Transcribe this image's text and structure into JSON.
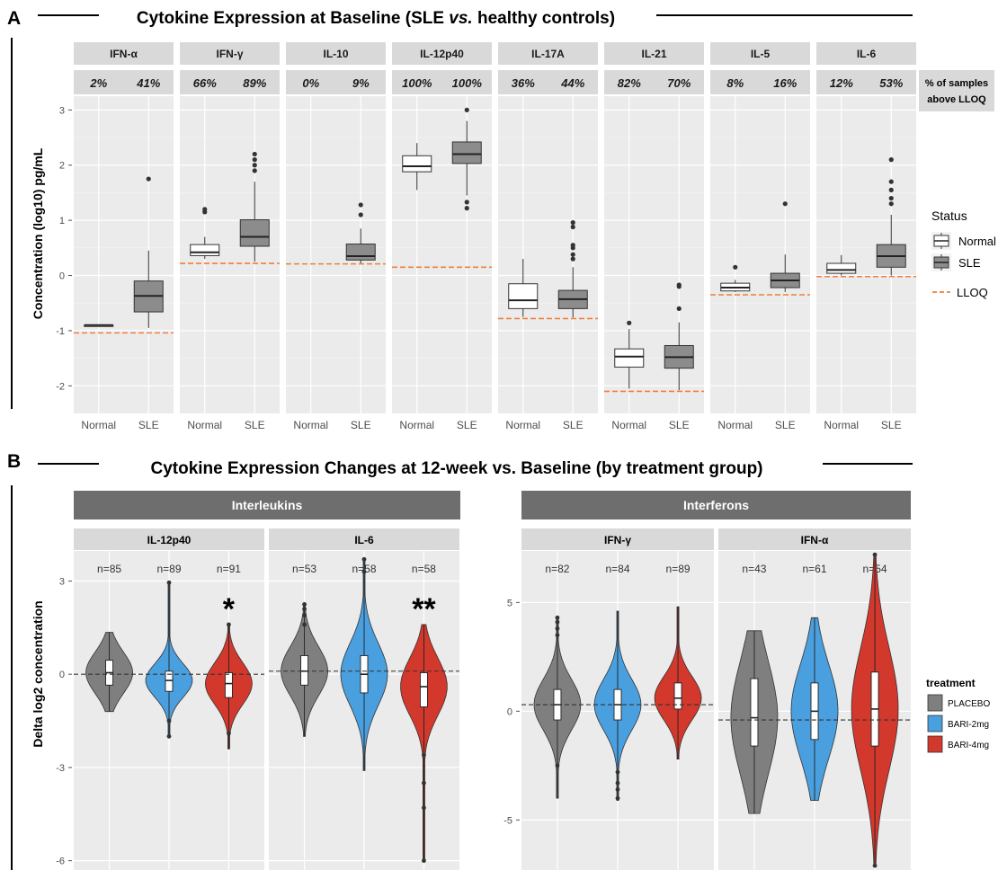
{
  "panel_a": {
    "letter": "A",
    "title_pre": "Cytokine Expression at Baseline (SLE ",
    "title_italic": "vs.",
    "title_post": " healthy controls)",
    "ylabel": "Concentration (log10) pg/mL",
    "right_label_line1": "% of samples",
    "right_label_line2": "above LLOQ",
    "legend_title": "Status",
    "legend_items": [
      "Normal",
      "SLE"
    ],
    "legend_lloq": "LLOQ",
    "colors": {
      "normal": "#ffffff",
      "sle": "#8c8c8c",
      "lloq": "#f07f3c"
    }
  },
  "panel_b": {
    "letter": "B",
    "title": "Cytokine Expression Changes at 12-week vs. Baseline (by treatment group)",
    "ylabel": "Delta log2 concentration",
    "group_left": "Interleukins",
    "group_right": "Interferons",
    "legend_title": "treatment",
    "legend_items": [
      "PLACEBO",
      "BARI-2mg",
      "BARI-4mg"
    ],
    "colors": {
      "placebo": "#7f7f7f",
      "bari2": "#4a9fdf",
      "bari4": "#d2382c"
    }
  },
  "chart_data": [
    {
      "type": "box",
      "panel": "A",
      "title": "Cytokine Expression at Baseline (SLE vs. healthy controls)",
      "ylabel": "Concentration (log10) pg/mL",
      "ylim": [
        -2.5,
        3.25
      ],
      "yticks": [
        -2,
        -1,
        0,
        1,
        2,
        3
      ],
      "categories": [
        "Normal",
        "SLE"
      ],
      "facets": [
        {
          "name": "IFN-α",
          "pct": [
            "2%",
            "41%"
          ],
          "lloq": -1.04,
          "normal": {
            "q1": -0.9,
            "med": -0.9,
            "q3": -0.9,
            "lo": -0.9,
            "hi": -0.9,
            "out": []
          },
          "sle": {
            "q1": -0.66,
            "med": -0.37,
            "q3": -0.1,
            "lo": -0.95,
            "hi": 0.45,
            "out": [
              1.75
            ]
          }
        },
        {
          "name": "IFN-γ",
          "pct": [
            "66%",
            "89%"
          ],
          "lloq": 0.22,
          "normal": {
            "q1": 0.36,
            "med": 0.42,
            "q3": 0.56,
            "lo": 0.3,
            "hi": 0.7,
            "out": [
              1.15,
              1.2
            ]
          },
          "sle": {
            "q1": 0.53,
            "med": 0.7,
            "q3": 1.01,
            "lo": 0.25,
            "hi": 1.7,
            "out": [
              1.9,
              2.0,
              2.1,
              2.2
            ]
          }
        },
        {
          "name": "IL-10",
          "pct": [
            "0%",
            "9%"
          ],
          "lloq": 0.21,
          "normal": null,
          "sle": {
            "q1": 0.28,
            "med": 0.35,
            "q3": 0.57,
            "lo": 0.22,
            "hi": 0.85,
            "out": [
              1.1,
              1.28
            ]
          }
        },
        {
          "name": "IL-12p40",
          "pct": [
            "100%",
            "100%"
          ],
          "lloq": 0.15,
          "normal": {
            "q1": 1.88,
            "med": 1.98,
            "q3": 2.17,
            "lo": 1.55,
            "hi": 2.4,
            "out": []
          },
          "sle": {
            "q1": 2.03,
            "med": 2.2,
            "q3": 2.42,
            "lo": 1.45,
            "hi": 2.8,
            "out": [
              1.22,
              1.33,
              3.0
            ]
          }
        },
        {
          "name": "IL-17A",
          "pct": [
            "36%",
            "44%"
          ],
          "lloq": -0.78,
          "normal": {
            "q1": -0.6,
            "med": -0.45,
            "q3": -0.15,
            "lo": -0.75,
            "hi": 0.3,
            "out": []
          },
          "sle": {
            "q1": -0.6,
            "med": -0.43,
            "q3": -0.27,
            "lo": -0.76,
            "hi": 0.15,
            "out": [
              0.3,
              0.38,
              0.5,
              0.55,
              0.88,
              0.96
            ]
          }
        },
        {
          "name": "IL-21",
          "pct": [
            "82%",
            "70%"
          ],
          "lloq": -2.1,
          "normal": {
            "q1": -1.66,
            "med": -1.47,
            "q3": -1.33,
            "lo": -2.05,
            "hi": -0.97,
            "out": [
              -0.86
            ]
          },
          "sle": {
            "q1": -1.68,
            "med": -1.48,
            "q3": -1.27,
            "lo": -2.08,
            "hi": -0.85,
            "out": [
              -0.6,
              -0.2,
              -0.17
            ]
          }
        },
        {
          "name": "IL-5",
          "pct": [
            "8%",
            "16%"
          ],
          "lloq": -0.35,
          "normal": {
            "q1": -0.28,
            "med": -0.22,
            "q3": -0.14,
            "lo": -0.3,
            "hi": -0.08,
            "out": [
              0.15
            ]
          },
          "sle": {
            "q1": -0.22,
            "med": -0.09,
            "q3": 0.04,
            "lo": -0.3,
            "hi": 0.38,
            "out": [
              1.3
            ]
          }
        },
        {
          "name": "IL-6",
          "pct": [
            "12%",
            "53%"
          ],
          "lloq": -0.02,
          "normal": {
            "q1": 0.04,
            "med": 0.1,
            "q3": 0.22,
            "lo": 0.0,
            "hi": 0.37,
            "out": []
          },
          "sle": {
            "q1": 0.15,
            "med": 0.35,
            "q3": 0.56,
            "lo": 0.0,
            "hi": 1.1,
            "out": [
              1.3,
              1.4,
              1.55,
              1.7,
              2.1
            ]
          }
        }
      ]
    },
    {
      "type": "violin",
      "panel": "B",
      "title": "Cytokine Expression Changes at 12-week vs. Baseline (by treatment group)",
      "ylabel": "Delta log2 concentration",
      "series_names": [
        "PLACEBO",
        "BARI-2mg",
        "BARI-4mg"
      ],
      "groups": [
        {
          "name": "Interleukins",
          "ylim": [
            -6.3,
            4.2
          ],
          "yticks": [
            3,
            0,
            -3,
            -6
          ],
          "facets": [
            {
              "name": "IL-12p40",
              "refline": 0.0,
              "n": [
                "n=85",
                "n=89",
                "n=91"
              ],
              "sig": "*",
              "violins": [
                {
                  "min": -1.2,
                  "max": 1.35,
                  "q1": -0.35,
                  "med": 0.05,
                  "q3": 0.45,
                  "out": []
                },
                {
                  "min": -2.0,
                  "max": 2.95,
                  "q1": -0.55,
                  "med": -0.2,
                  "q3": 0.1,
                  "out": [
                    -1.5,
                    -2.0,
                    2.95
                  ]
                },
                {
                  "min": -2.4,
                  "max": 1.6,
                  "q1": -0.75,
                  "med": -0.3,
                  "q3": 0.05,
                  "out": [
                    -1.9,
                    1.6
                  ]
                }
              ]
            },
            {
              "name": "IL-6",
              "refline": 0.1,
              "n": [
                "n=53",
                "n=58",
                "n=58"
              ],
              "sig": "**",
              "violins": [
                {
                  "min": -2.0,
                  "max": 2.2,
                  "q1": -0.35,
                  "med": 0.1,
                  "q3": 0.6,
                  "out": [
                    1.6,
                    1.9,
                    2.1,
                    2.25
                  ]
                },
                {
                  "min": -3.1,
                  "max": 3.7,
                  "q1": -0.6,
                  "med": 0.0,
                  "q3": 0.6,
                  "out": [
                    3.3,
                    3.7
                  ]
                },
                {
                  "min": -6.0,
                  "max": 1.6,
                  "q1": -1.05,
                  "med": -0.4,
                  "q3": 0.05,
                  "out": [
                    -2.6,
                    -3.5,
                    -4.3,
                    -6.0
                  ]
                }
              ]
            }
          ]
        },
        {
          "name": "Interferons",
          "ylim": [
            -7.3,
            7.7
          ],
          "yticks": [
            5,
            0,
            -5
          ],
          "facets": [
            {
              "name": "IFN-γ",
              "refline": 0.3,
              "n": [
                "n=82",
                "n=84",
                "n=89"
              ],
              "sig": "",
              "violins": [
                {
                  "min": -4.0,
                  "max": 4.3,
                  "q1": -0.4,
                  "med": 0.3,
                  "q3": 1.0,
                  "out": [
                    3.5,
                    3.8,
                    4.1,
                    4.3,
                    -2.5
                  ]
                },
                {
                  "min": -4.1,
                  "max": 4.6,
                  "q1": -0.4,
                  "med": 0.3,
                  "q3": 1.0,
                  "out": [
                    -2.8,
                    -3.3,
                    -3.6,
                    -4.0
                  ]
                },
                {
                  "min": -2.2,
                  "max": 4.8,
                  "q1": 0.1,
                  "med": 0.6,
                  "q3": 1.3,
                  "out": []
                }
              ]
            },
            {
              "name": "IFN-α",
              "refline": -0.4,
              "n": [
                "n=43",
                "n=61",
                "n=54"
              ],
              "sig": "",
              "violins": [
                {
                  "min": -4.7,
                  "max": 3.7,
                  "q1": -1.6,
                  "med": -0.3,
                  "q3": 1.5,
                  "out": []
                },
                {
                  "min": -4.1,
                  "max": 4.3,
                  "q1": -1.3,
                  "med": 0.0,
                  "q3": 1.3,
                  "out": []
                },
                {
                  "min": -7.1,
                  "max": 7.2,
                  "q1": -1.6,
                  "med": 0.1,
                  "q3": 1.8,
                  "out": [
                    -7.1,
                    7.2
                  ]
                }
              ]
            }
          ]
        }
      ]
    }
  ]
}
